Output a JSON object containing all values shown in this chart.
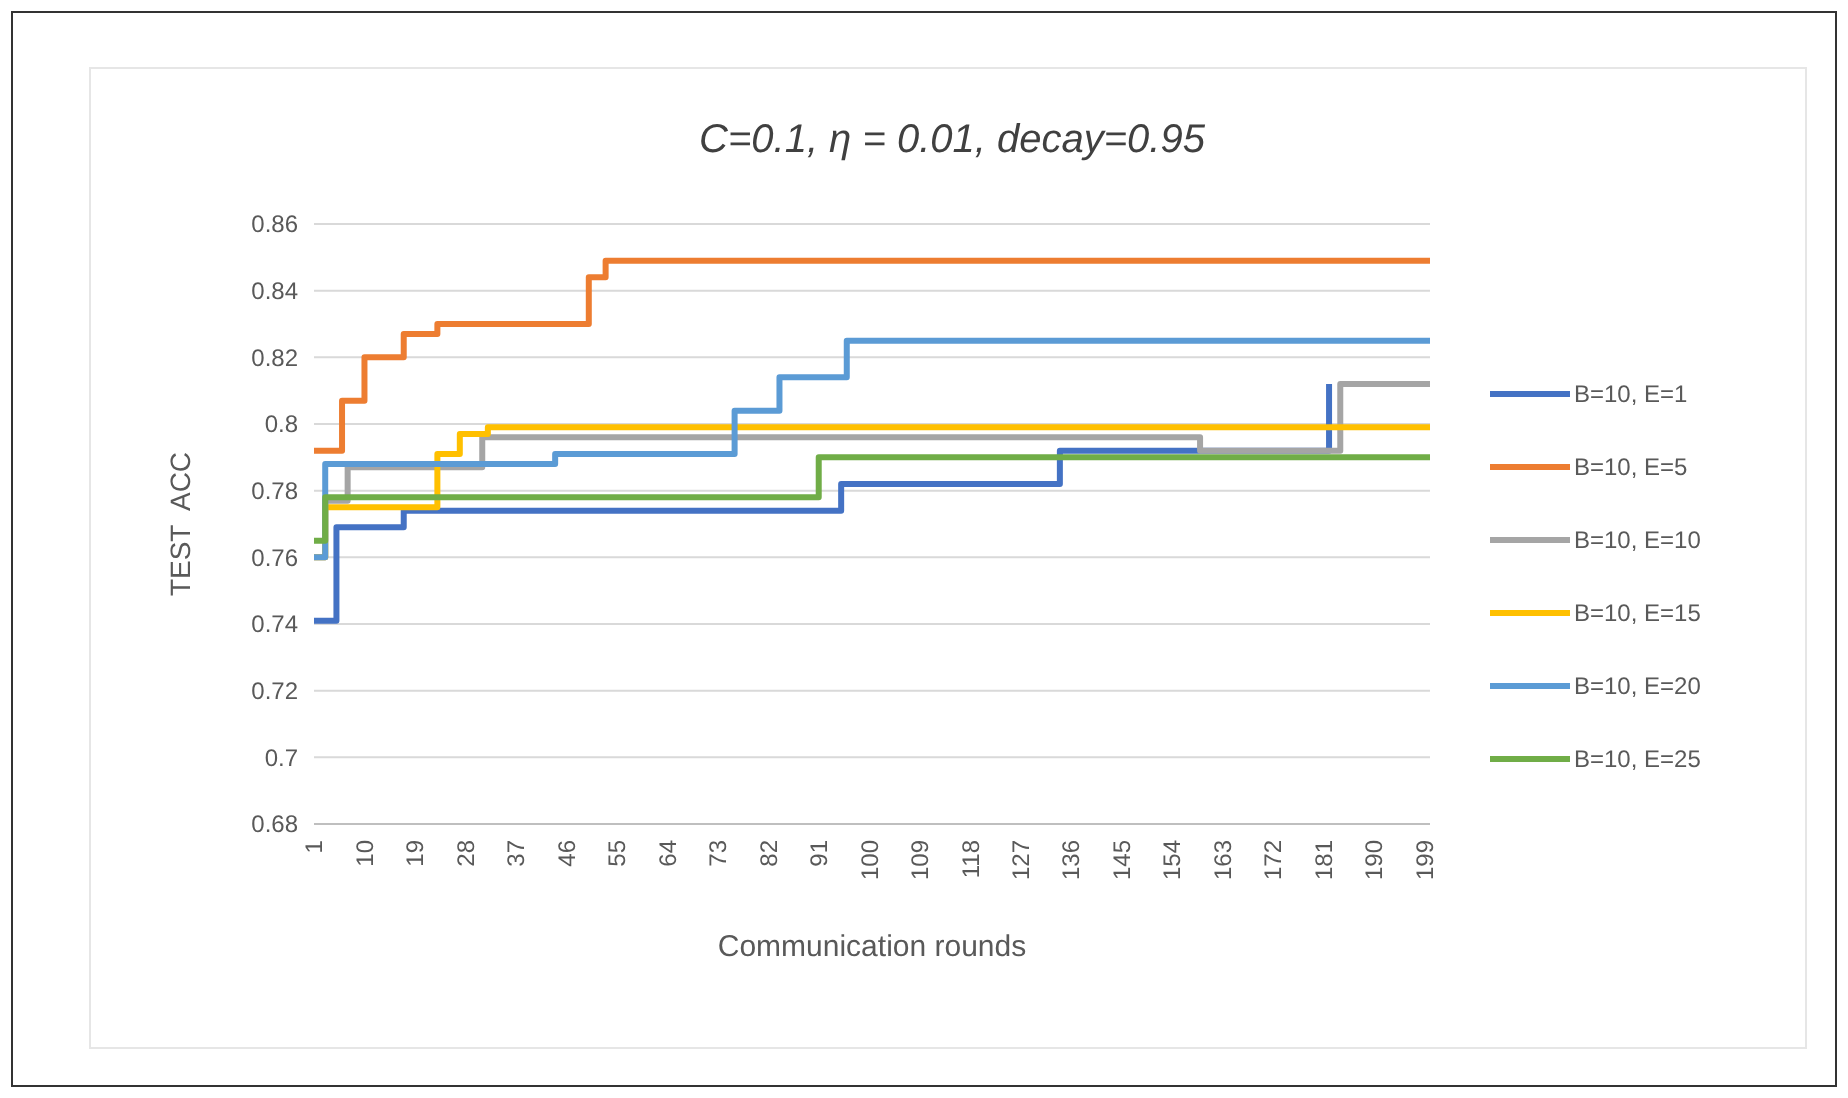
{
  "chart_data": {
    "type": "step",
    "title": "C=0.1, η = 0.01, decay=0.95",
    "xlabel": "Communication rounds",
    "ylabel": "TEST  ACC",
    "xlim": [
      1,
      200
    ],
    "xticks": [
      1,
      10,
      19,
      28,
      37,
      46,
      55,
      64,
      73,
      82,
      91,
      100,
      109,
      118,
      127,
      136,
      145,
      154,
      163,
      172,
      181,
      190,
      199
    ],
    "ylim": [
      0.68,
      0.86
    ],
    "yticks": [
      0.68,
      0.7,
      0.72,
      0.74,
      0.76,
      0.78,
      0.8,
      0.82,
      0.84,
      0.86
    ],
    "grid": "y",
    "legend": "right",
    "line_style": "solid",
    "marker": "none",
    "series": [
      {
        "name": "B=10, E=1",
        "color": "#4472c4",
        "x": [
          1,
          5,
          17,
          95,
          134,
          182
        ],
        "values": [
          0.741,
          0.769,
          0.774,
          0.782,
          0.792,
          0.812
        ]
      },
      {
        "name": "B=10, E=5",
        "color": "#ed7d31",
        "x": [
          1,
          6,
          10,
          17,
          23,
          50,
          53,
          200
        ],
        "values": [
          0.792,
          0.807,
          0.82,
          0.827,
          0.83,
          0.844,
          0.849,
          0.849
        ]
      },
      {
        "name": "B=10, E=10",
        "color": "#a5a5a5",
        "x": [
          1,
          3,
          7,
          31,
          159,
          184,
          200
        ],
        "values": [
          0.76,
          0.777,
          0.787,
          0.796,
          0.792,
          0.812,
          0.812
        ]
      },
      {
        "name": "B=10, E=15",
        "color": "#ffc000",
        "x": [
          1,
          3,
          23,
          27,
          32,
          200
        ],
        "values": [
          0.76,
          0.775,
          0.791,
          0.797,
          0.799,
          0.799
        ]
      },
      {
        "name": "B=10, E=20",
        "color": "#5b9bd5",
        "x": [
          1,
          3,
          44,
          76,
          84,
          96,
          200
        ],
        "values": [
          0.76,
          0.788,
          0.791,
          0.804,
          0.814,
          0.825,
          0.825
        ]
      },
      {
        "name": "B=10, E=25",
        "color": "#70ad47",
        "x": [
          1,
          3,
          91,
          200
        ],
        "values": [
          0.765,
          0.778,
          0.79,
          0.79
        ]
      }
    ]
  }
}
